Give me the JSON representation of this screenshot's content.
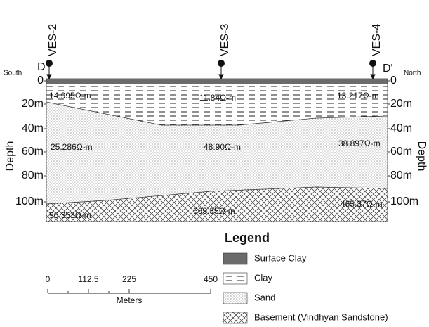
{
  "stations": [
    {
      "label": "VES-2"
    },
    {
      "label": "VES-3"
    },
    {
      "label": "VES-4"
    }
  ],
  "section_ends": {
    "left": {
      "label": "D",
      "direction": "South"
    },
    "right": {
      "label": "D'",
      "direction": "North"
    }
  },
  "depth_axis": {
    "title": "Depth",
    "ticks": [
      "0",
      "20m",
      "40m",
      "60m",
      "80m",
      "100m"
    ]
  },
  "layers": {
    "clay": [
      "14.995Ω-m",
      "11.84Ω-m",
      "13.217Ω-m"
    ],
    "sand": [
      "25.286Ω-m",
      "48.90Ω-m",
      "38.897Ω-m"
    ],
    "basement": [
      "96.353Ω-m",
      "669.35Ω-m",
      "465.37Ω-m"
    ]
  },
  "legend": {
    "title": "Legend",
    "items": [
      "Surface Clay",
      "Clay",
      "Sand",
      "Basement (Vindhyan Sandstone)"
    ]
  },
  "scale_bar": {
    "ticks": [
      "0",
      "112.5",
      "225",
      "450"
    ],
    "unit": "Meters"
  }
}
